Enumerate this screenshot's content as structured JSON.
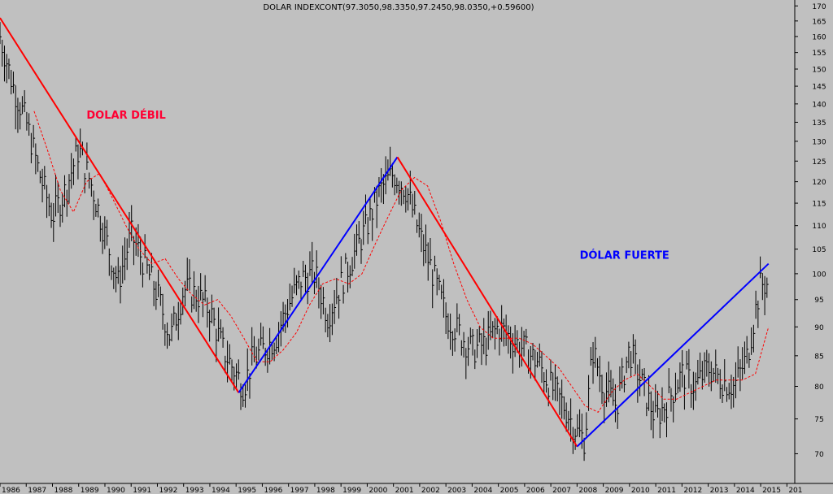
{
  "chart_data": {
    "type": "line",
    "title": "DOLAR INDEXCONT(97.3050,98.3350,97.2450,98.0350,+0.59600)",
    "xlabel": "",
    "ylabel": "",
    "scale": "log",
    "grid": false,
    "ylim": [
      66,
      172
    ],
    "xlim": [
      1986.0,
      2016.3
    ],
    "y_ticks": [
      70,
      75,
      80,
      85,
      90,
      95,
      100,
      105,
      110,
      115,
      120,
      125,
      130,
      135,
      140,
      145,
      150,
      155,
      160,
      165,
      170
    ],
    "x_ticks": [
      "1986",
      "1987",
      "1988",
      "1989",
      "1990",
      "1991",
      "1992",
      "1993",
      "1994",
      "1995",
      "1996",
      "1997",
      "1998",
      "1999",
      "2000",
      "2001",
      "2002",
      "2003",
      "2004",
      "2005",
      "2006",
      "2007",
      "2008",
      "2009",
      "2010",
      "2011",
      "2012",
      "2013",
      "2014",
      "2015",
      "201"
    ],
    "series": [
      {
        "name": "",
        "kind": "ohlc-bars",
        "color": "#000000",
        "x": [
          1986.0,
          1986.5,
          1987.0,
          1987.5,
          1988.0,
          1988.5,
          1989.0,
          1989.5,
          1990.0,
          1990.5,
          1991.0,
          1991.5,
          1992.0,
          1992.5,
          1993.0,
          1993.5,
          1994.0,
          1994.5,
          1995.0,
          1995.3,
          1995.6,
          1996.0,
          1996.5,
          1997.0,
          1997.5,
          1998.0,
          1998.5,
          1999.0,
          1999.5,
          2000.0,
          2000.5,
          2001.0,
          2001.5,
          2002.0,
          2002.5,
          2003.0,
          2003.5,
          2004.0,
          2004.5,
          2005.0,
          2005.5,
          2006.0,
          2006.5,
          2007.0,
          2007.5,
          2008.0,
          2008.3,
          2008.6,
          2009.0,
          2009.5,
          2010.0,
          2010.5,
          2011.0,
          2011.5,
          2012.0,
          2012.5,
          2013.0,
          2013.5,
          2014.0,
          2014.5,
          2015.0,
          2015.3
        ],
        "values": [
          160,
          145,
          135,
          122,
          112,
          118,
          128,
          119,
          108,
          98,
          108,
          102,
          96,
          88,
          97,
          96,
          93,
          86,
          82,
          80,
          84,
          86,
          88,
          94,
          99,
          100,
          92,
          98,
          104,
          110,
          118,
          122,
          118,
          108,
          100,
          92,
          89,
          86,
          87,
          90,
          88,
          86,
          84,
          80,
          77,
          73,
          72,
          86,
          80,
          77,
          86,
          80,
          75,
          78,
          82,
          80,
          83,
          81,
          80,
          85,
          98,
          98
        ]
      },
      {
        "name": "",
        "kind": "moving-average",
        "color": "#ff0000",
        "dashed": true,
        "x": [
          1987.3,
          1987.8,
          1988.3,
          1988.8,
          1989.3,
          1989.8,
          1990.3,
          1990.8,
          1991.3,
          1991.8,
          1992.3,
          1992.8,
          1993.3,
          1993.8,
          1994.3,
          1994.8,
          1995.3,
          1995.8,
          1996.3,
          1996.8,
          1997.3,
          1997.8,
          1998.3,
          1998.8,
          1999.3,
          1999.8,
          2000.3,
          2000.8,
          2001.3,
          2001.8,
          2002.3,
          2002.8,
          2003.3,
          2003.8,
          2004.3,
          2004.8,
          2005.3,
          2005.8,
          2006.3,
          2006.8,
          2007.3,
          2007.8,
          2008.3,
          2008.8,
          2009.3,
          2009.8,
          2010.3,
          2010.8,
          2011.3,
          2011.8,
          2012.3,
          2012.8,
          2013.3,
          2013.8,
          2014.3,
          2014.8,
          2015.3
        ],
        "values": [
          138,
          128,
          118,
          113,
          120,
          122,
          116,
          110,
          105,
          102,
          103,
          99,
          96,
          94,
          95,
          92,
          88,
          84,
          84,
          86,
          89,
          94,
          98,
          99,
          98,
          100,
          106,
          112,
          118,
          121,
          119,
          111,
          102,
          95,
          90,
          88,
          88,
          88,
          87,
          85,
          83,
          80,
          77,
          76,
          79,
          81,
          82,
          80,
          78,
          78,
          79,
          80,
          81,
          81,
          81,
          82,
          90
        ]
      }
    ],
    "trendlines": [
      {
        "color": "#ff0000",
        "points": [
          [
            1986.0,
            166
          ],
          [
            1995.1,
            79
          ]
        ]
      },
      {
        "color": "#0000ff",
        "points": [
          [
            1995.1,
            79
          ],
          [
            2001.15,
            126
          ]
        ]
      },
      {
        "color": "#ff0000",
        "points": [
          [
            2001.15,
            126
          ],
          [
            2008.0,
            71
          ]
        ]
      },
      {
        "color": "#0000ff",
        "points": [
          [
            2008.0,
            71
          ],
          [
            2015.3,
            102
          ]
        ]
      }
    ],
    "annotations": [
      {
        "text": "DOLAR DÉBIL",
        "color": "#ff0033",
        "x": 1989.3,
        "y": 136
      },
      {
        "text": "DÓLAR FUERTE",
        "color": "#0000ff",
        "x": 2008.1,
        "y": 103
      }
    ]
  }
}
